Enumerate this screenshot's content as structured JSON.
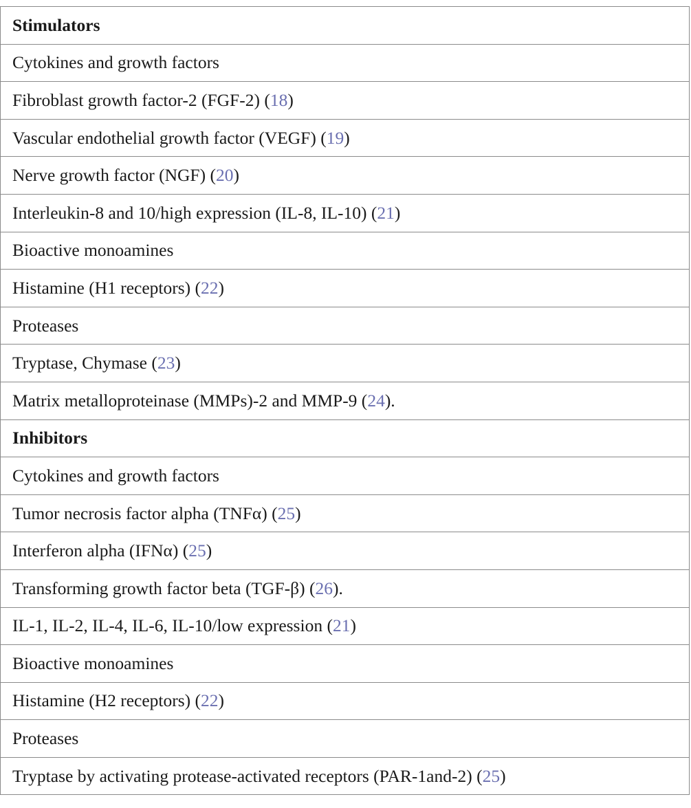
{
  "table": {
    "rows": [
      {
        "type": "heading",
        "text": "Stimulators"
      },
      {
        "type": "text",
        "text": "Cytokines and growth factors"
      },
      {
        "type": "text",
        "text": "Fibroblast growth factor-2 (FGF-2) (",
        "ref": "18",
        "tail": ")"
      },
      {
        "type": "text",
        "text": "Vascular endothelial growth factor (VEGF) (",
        "ref": "19",
        "tail": ")"
      },
      {
        "type": "text",
        "text": "Nerve growth factor (NGF) (",
        "ref": "20",
        "tail": ")"
      },
      {
        "type": "text",
        "text": "Interleukin-8 and 10/high expression (IL-8, IL-10) (",
        "ref": "21",
        "tail": ")"
      },
      {
        "type": "text",
        "text": "Bioactive monoamines"
      },
      {
        "type": "text",
        "text": "Histamine (H1 receptors) (",
        "ref": "22",
        "tail": ")"
      },
      {
        "type": "text",
        "text": "Proteases"
      },
      {
        "type": "text",
        "text": "Tryptase, Chymase (",
        "ref": "23",
        "tail": ")"
      },
      {
        "type": "text",
        "text": "Matrix metalloproteinase (MMPs)-2 and MMP-9 (",
        "ref": "24",
        "tail": ")."
      },
      {
        "type": "heading",
        "text": "Inhibitors"
      },
      {
        "type": "text",
        "text": "Cytokines and growth factors"
      },
      {
        "type": "text",
        "text": "Tumor necrosis factor alpha (TNFα) (",
        "ref": "25",
        "tail": ")"
      },
      {
        "type": "text",
        "text": "Interferon alpha (IFNα) (",
        "ref": "25",
        "tail": ")"
      },
      {
        "type": "text",
        "text": "Transforming growth factor beta (TGF-β) (",
        "ref": "26",
        "tail": ")."
      },
      {
        "type": "text",
        "text": "IL-1, IL-2, IL-4, IL-6, IL-10/low expression (",
        "ref": "21",
        "tail": ")"
      },
      {
        "type": "text",
        "text": "Bioactive monoamines"
      },
      {
        "type": "text",
        "text": "Histamine (H2 receptors) (",
        "ref": "22",
        "tail": ")"
      },
      {
        "type": "text",
        "text": "Proteases"
      },
      {
        "type": "text",
        "text": "Tryptase by activating protease-activated receptors (PAR-1and-2) (",
        "ref": "25",
        "tail": ")"
      }
    ]
  },
  "colors": {
    "reference_link": "#6a6fb0",
    "text": "#1a1a1a",
    "border": "#8a8a8a"
  }
}
